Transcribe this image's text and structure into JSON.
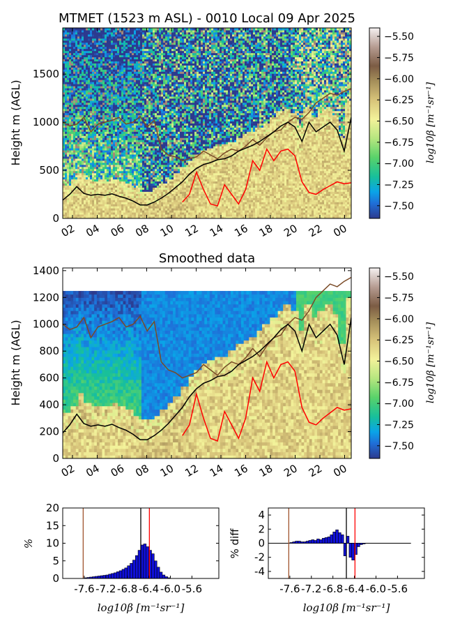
{
  "chart_data": [
    {
      "type": "heatmap",
      "title": "MTMET (1523 m ASL) - 0010 Local 09 Apr 2025",
      "ylabel": "Height m (AGL)",
      "xticks": [
        "02",
        "04",
        "06",
        "08",
        "10",
        "12",
        "14",
        "16",
        "18",
        "20",
        "22",
        "00"
      ],
      "yticks": [
        "0",
        "500",
        "1000",
        "1500"
      ],
      "ylim": [
        0,
        1980
      ],
      "colorbar": {
        "label": "log10β [m⁻¹sr⁻¹]",
        "ticks": [
          "−5.50",
          "−5.75",
          "−6.00",
          "−6.25",
          "−6.50",
          "−6.75",
          "−7.00",
          "−7.25",
          "−7.50"
        ],
        "range": [
          -7.65,
          -5.4
        ]
      },
      "lines": {
        "black": {
          "color": "#000000",
          "y": [
            190,
            250,
            330,
            260,
            240,
            250,
            240,
            255,
            230,
            210,
            180,
            140,
            140,
            170,
            210,
            260,
            320,
            380,
            460,
            520,
            560,
            580,
            610,
            620,
            650,
            700,
            730,
            760,
            800,
            850,
            900,
            960,
            1000,
            950,
            800,
            1000,
            900,
            950,
            1000,
            920,
            700,
            1050
          ]
        },
        "red": {
          "color": "#ff0000",
          "y": [
            null,
            null,
            null,
            null,
            null,
            null,
            null,
            null,
            null,
            null,
            null,
            null,
            null,
            null,
            null,
            null,
            null,
            170,
            250,
            480,
            300,
            150,
            130,
            350,
            250,
            150,
            300,
            600,
            500,
            720,
            600,
            700,
            720,
            650,
            380,
            270,
            250,
            300,
            340,
            380,
            360,
            370
          ]
        },
        "brown": {
          "color": "#7a4a26",
          "y": [
            1000,
            960,
            980,
            1050,
            900,
            980,
            1000,
            1020,
            1050,
            980,
            1000,
            1060,
            950,
            1020,
            720,
            660,
            640,
            600,
            620,
            640,
            700,
            660,
            620,
            680,
            720,
            700,
            750,
            820,
            760,
            840,
            900,
            920,
            1000,
            1050,
            1030,
            1100,
            1200,
            1250,
            1300,
            1280,
            1320,
            1350
          ]
        }
      }
    },
    {
      "type": "heatmap",
      "title": "Smoothed data",
      "ylabel": "Height m (AGL)",
      "xticks": [
        "02",
        "04",
        "06",
        "08",
        "10",
        "12",
        "14",
        "16",
        "18",
        "20",
        "22",
        "00"
      ],
      "yticks": [
        "0",
        "200",
        "400",
        "600",
        "800",
        "1000",
        "1200",
        "1400"
      ],
      "ylim": [
        0,
        1420
      ],
      "colorbar": {
        "label": "log10β [m⁻¹sr⁻¹]",
        "ticks": [
          "−5.50",
          "−5.75",
          "−6.00",
          "−6.25",
          "−6.50",
          "−6.75",
          "−7.00",
          "−7.25",
          "−7.50"
        ],
        "range": [
          -7.65,
          -5.4
        ]
      },
      "lines": {
        "black": {
          "color": "#000000",
          "y": [
            190,
            250,
            330,
            260,
            240,
            250,
            240,
            255,
            230,
            210,
            180,
            140,
            140,
            170,
            210,
            260,
            320,
            380,
            460,
            520,
            560,
            580,
            610,
            620,
            650,
            700,
            730,
            760,
            800,
            850,
            900,
            960,
            1000,
            950,
            800,
            1000,
            900,
            950,
            1000,
            920,
            700,
            1050
          ]
        },
        "red": {
          "color": "#ff0000",
          "y": [
            null,
            null,
            null,
            null,
            null,
            null,
            null,
            null,
            null,
            null,
            null,
            null,
            null,
            null,
            null,
            null,
            null,
            170,
            250,
            480,
            300,
            150,
            130,
            350,
            250,
            150,
            300,
            600,
            500,
            720,
            600,
            700,
            720,
            650,
            380,
            270,
            250,
            300,
            340,
            380,
            360,
            370
          ]
        },
        "brown": {
          "color": "#7a4a26",
          "y": [
            1000,
            960,
            980,
            1050,
            900,
            980,
            1000,
            1020,
            1050,
            980,
            1000,
            1060,
            950,
            1020,
            720,
            660,
            640,
            600,
            620,
            640,
            700,
            660,
            620,
            680,
            720,
            700,
            750,
            820,
            760,
            840,
            900,
            920,
            1000,
            1050,
            1030,
            1100,
            1200,
            1250,
            1300,
            1280,
            1320,
            1350
          ]
        }
      }
    },
    {
      "type": "bar",
      "ylabel": "%",
      "xlabel": "log10β [m⁻¹sr⁻¹]",
      "xticks": [
        "-7.6",
        "-7.2",
        "-6.8",
        "-6.4",
        "-6.0",
        "-5.6"
      ],
      "yticks": [
        "0",
        "5",
        "10",
        "15",
        "20"
      ],
      "xlim": [
        -8.0,
        -5.1
      ],
      "ylim": [
        0,
        20
      ],
      "bin_width": 0.05,
      "bin_start": -7.6,
      "values": [
        0.2,
        0.3,
        0.4,
        0.5,
        0.6,
        0.7,
        0.8,
        0.9,
        1.0,
        1.2,
        1.4,
        1.6,
        1.9,
        2.2,
        2.6,
        3.0,
        3.6,
        4.3,
        5.2,
        6.5,
        8.0,
        9.5,
        9.8,
        9.0,
        8.0,
        7.0,
        5.0,
        3.2,
        1.8,
        1.0,
        0.5,
        0.2
      ],
      "vlines": {
        "brown": -7.62,
        "black": -6.55,
        "red": -6.39
      }
    },
    {
      "type": "bar",
      "ylabel": "% diff",
      "xlabel": "log10β [m⁻¹sr⁻¹]",
      "xticks": [
        "-7.6",
        "-7.2",
        "-6.8",
        "-6.4",
        "-6.0",
        "-5.6"
      ],
      "yticks": [
        "4",
        "2",
        "0",
        "-2",
        "-4"
      ],
      "xlim": [
        -8.0,
        -5.1
      ],
      "ylim": [
        -5,
        5
      ],
      "bin_width": 0.05,
      "bin_start": -7.6,
      "values": [
        0.1,
        0.2,
        0.3,
        0.3,
        0.2,
        0.2,
        0.3,
        0.4,
        0.5,
        0.4,
        0.6,
        0.5,
        0.7,
        0.8,
        0.9,
        1.2,
        1.6,
        1.9,
        1.5,
        1.2,
        -1.8,
        1.0,
        -2.0,
        -2.4,
        -1.6,
        -0.5,
        -0.2,
        -0.1
      ],
      "vlines": {
        "brown": -7.62,
        "black": -6.55,
        "red": -6.39
      }
    }
  ]
}
